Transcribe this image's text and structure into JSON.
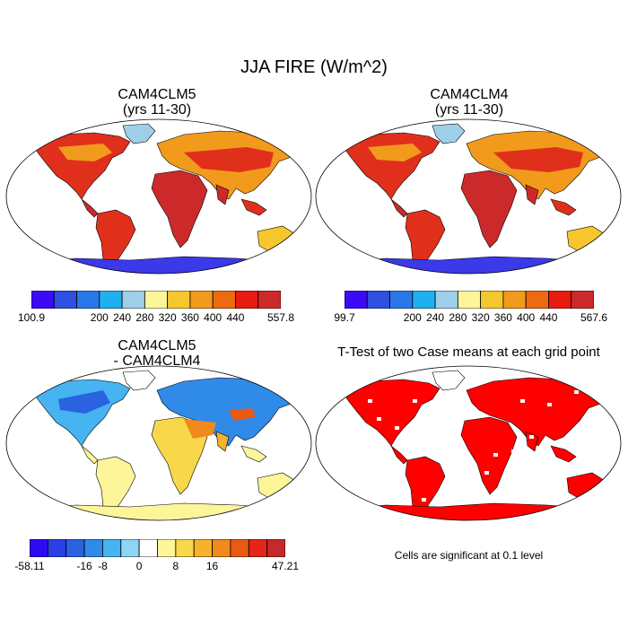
{
  "figure": {
    "title": "JJA FIRE (W/m^2)",
    "panels": [
      {
        "id": "p1",
        "title_line1": "CAM4CLM5",
        "title_line2": "(yrs 11-30)"
      },
      {
        "id": "p2",
        "title_line1": "CAM4CLM4",
        "title_line2": "(yrs 11-30)"
      },
      {
        "id": "p3",
        "title_line1": "CAM4CLM5",
        "title_line2": "- CAM4CLM4"
      },
      {
        "id": "p4",
        "title_line1": "T-Test of two Case means at each grid point"
      }
    ],
    "footnote": "Cells are significant at 0.1 level"
  },
  "colorbars": [
    {
      "id": "cb1",
      "colors": [
        "#3a0bf5",
        "#2e4fe0",
        "#2a78e8",
        "#1fb0f0",
        "#9fcfe8",
        "#fdf59a",
        "#f6c72c",
        "#f29a1c",
        "#ec6a10",
        "#e81b10",
        "#cc2a2a"
      ],
      "labels": [
        "100.9",
        "200",
        "240",
        "280",
        "320",
        "360",
        "400",
        "440",
        "557.8"
      ]
    },
    {
      "id": "cb2",
      "colors": [
        "#3a0bf5",
        "#2e4fe0",
        "#2a78e8",
        "#1fb0f0",
        "#9fcfe8",
        "#fdf59a",
        "#f6c72c",
        "#f29a1c",
        "#ec6a10",
        "#e81b10",
        "#cc2a2a"
      ],
      "labels": [
        "99.7",
        "200",
        "240",
        "280",
        "320",
        "360",
        "400",
        "440",
        "567.6"
      ]
    },
    {
      "id": "cb3",
      "colors": [
        "#2b0cf2",
        "#2a3fe6",
        "#2a62e0",
        "#2f8ae8",
        "#46b4f0",
        "#8fd4f5",
        "#ffffff",
        "#fdf59a",
        "#f8d84a",
        "#f5b22a",
        "#f1891c",
        "#ea5a14",
        "#e5251a",
        "#c8282a"
      ],
      "labels": [
        "-58.11",
        "-16",
        "-8",
        "0",
        "8",
        "16",
        "47.21"
      ]
    }
  ],
  "map_legend": {
    "land_warm": "#e0301c",
    "land_hot": "#cc2a2a",
    "land_mid": "#f29a1c",
    "land_cool": "#f6c72c",
    "polar": "#3a3ae8",
    "sig": "#ff0000"
  }
}
